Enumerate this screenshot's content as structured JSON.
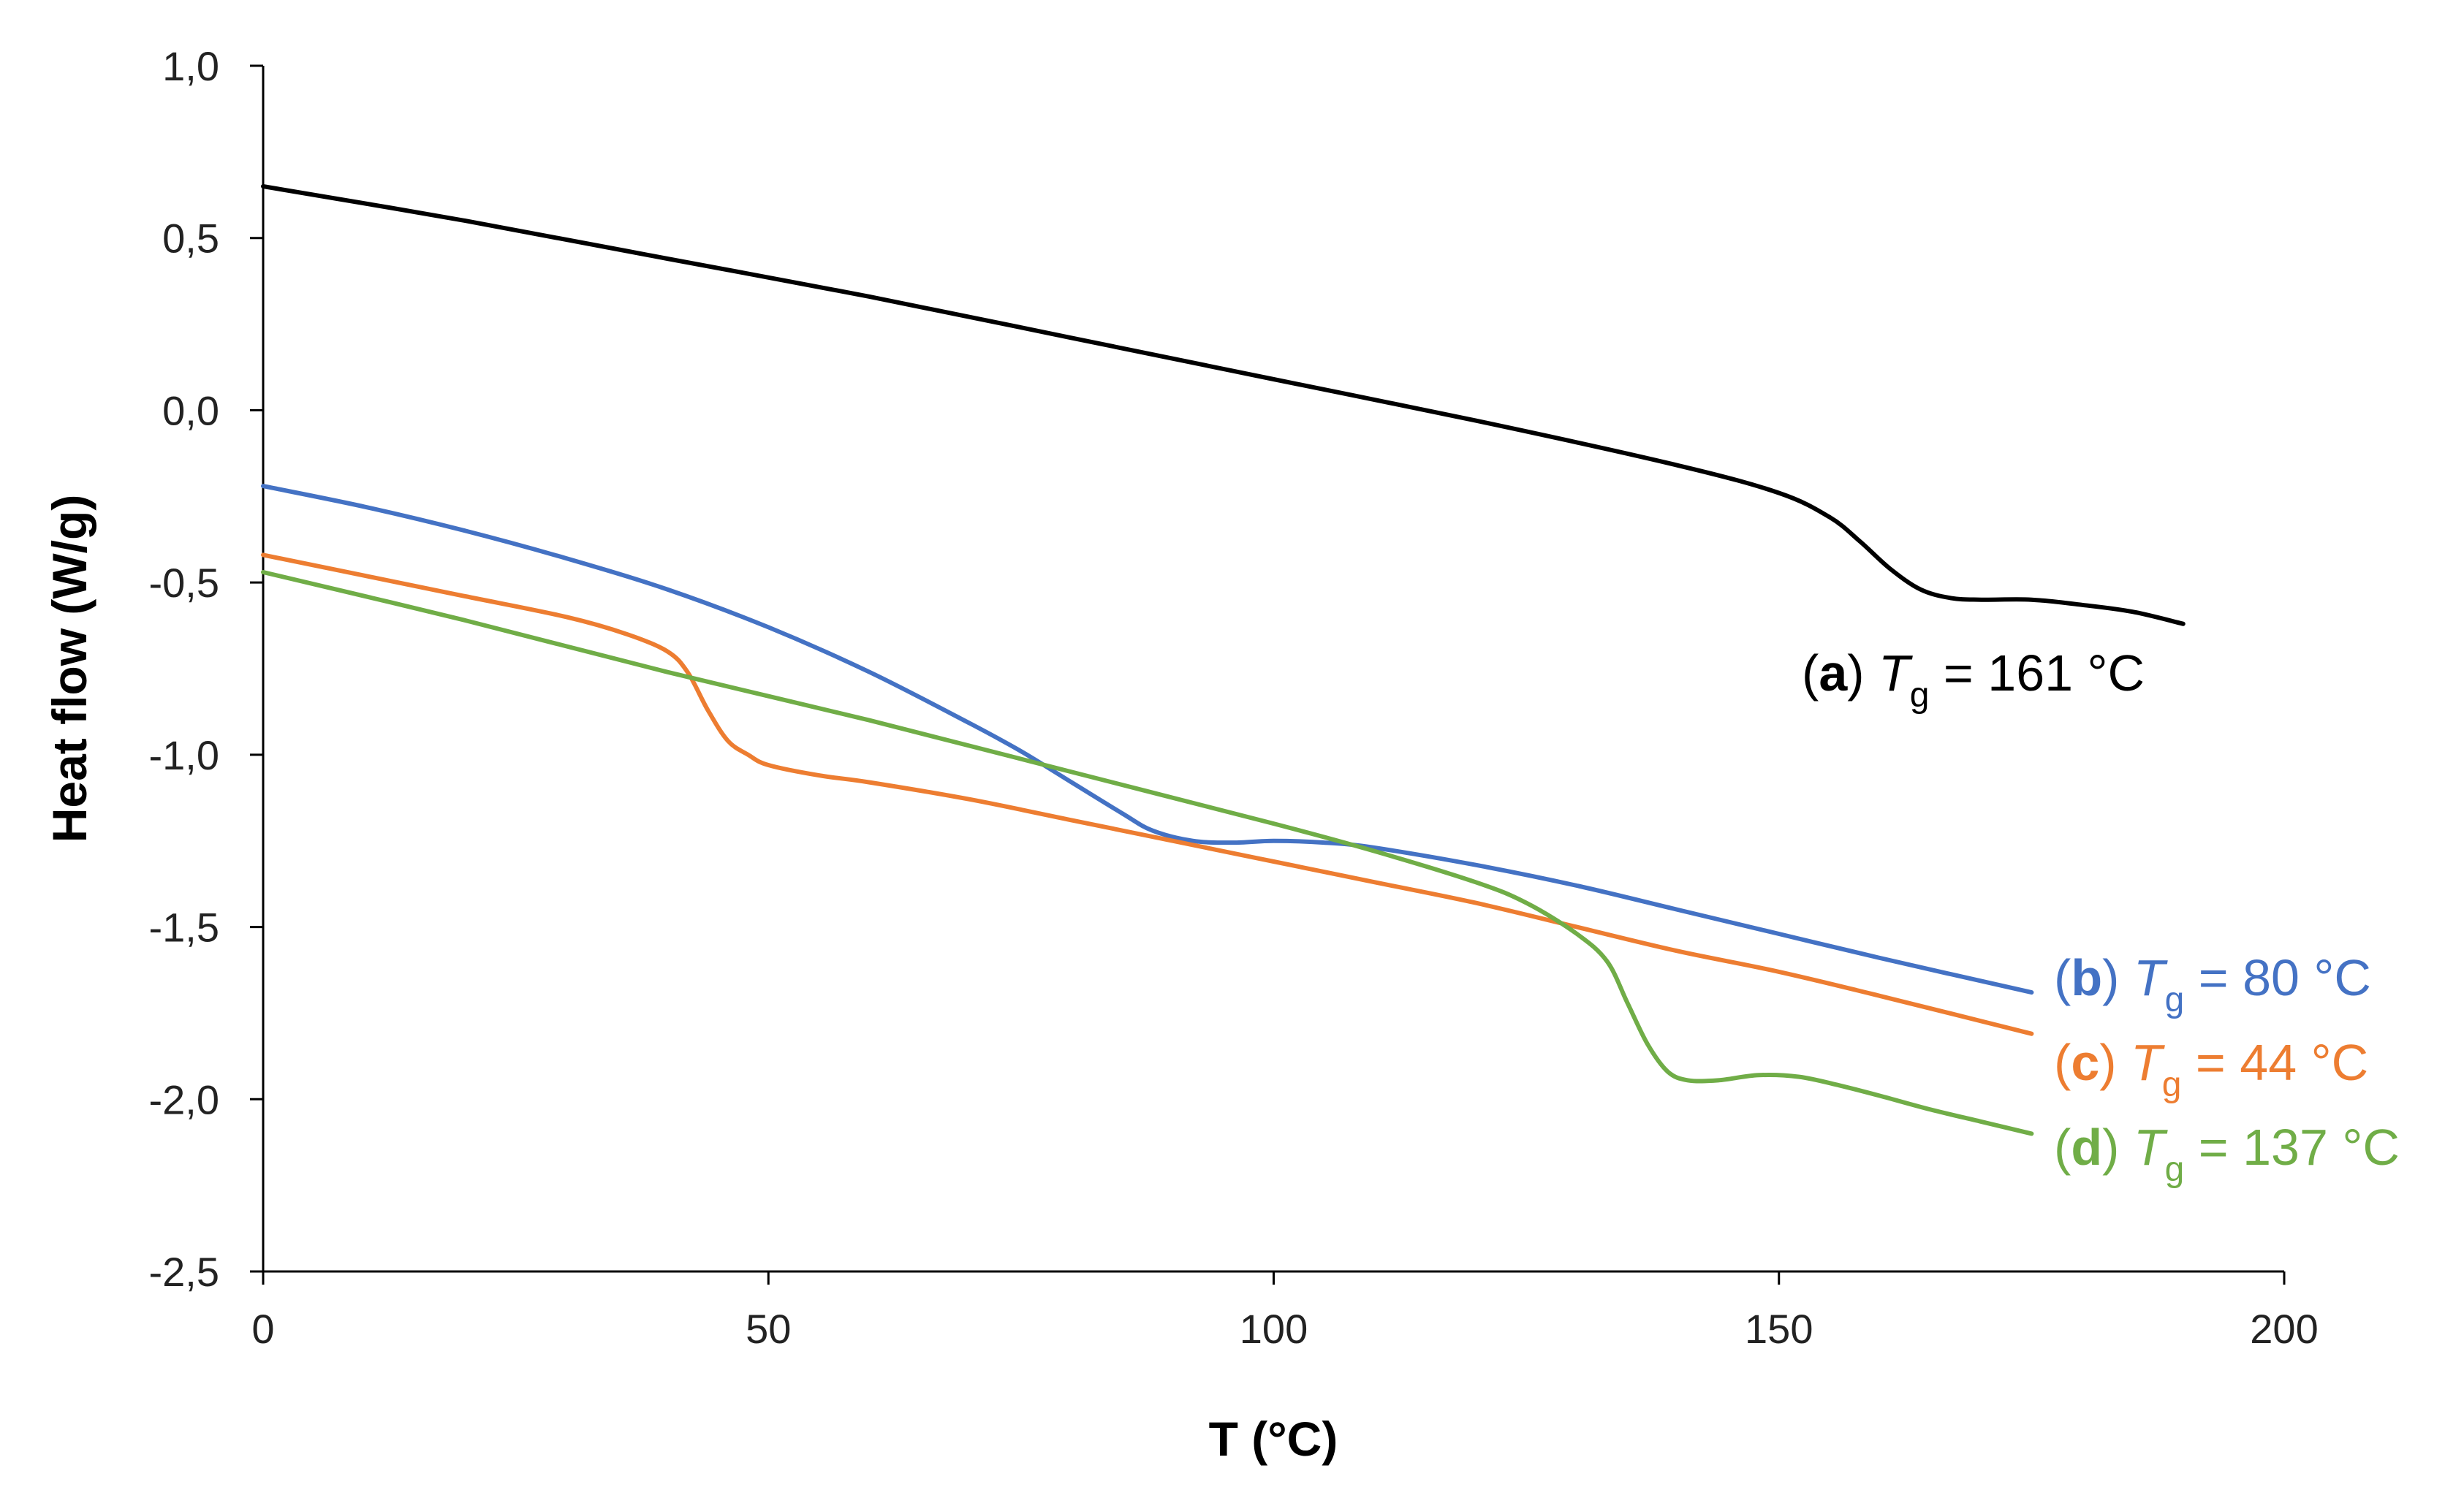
{
  "chart_data": {
    "type": "line",
    "title": "",
    "xlabel": "T (°C)",
    "ylabel": "Heat flow (W/g)",
    "xlim": [
      0,
      200
    ],
    "ylim": [
      -2.5,
      1.0
    ],
    "x_ticks": [
      0,
      50,
      100,
      150,
      200
    ],
    "x_tick_labels": [
      "0",
      "50",
      "100",
      "150",
      "200"
    ],
    "y_ticks": [
      1.0,
      0.5,
      0.0,
      -0.5,
      -1.0,
      -1.5,
      -2.0,
      -2.5
    ],
    "y_tick_labels": [
      "1,0",
      "0,5",
      "0,0",
      "-0,5",
      "-1,0",
      "-1,5",
      "-2,0",
      "-2,5"
    ],
    "grid": false,
    "legend": "inline labels at line ends",
    "series": [
      {
        "name": "(a) Tg = 161 °C",
        "label_id": "a",
        "label_value": "161",
        "color": "#000000",
        "x": [
          0,
          20,
          40,
          60,
          80,
          100,
          120,
          140,
          150,
          155,
          158,
          161,
          164,
          167,
          170,
          175,
          180,
          185,
          190
        ],
        "y": [
          0.65,
          0.55,
          0.44,
          0.33,
          0.21,
          0.09,
          -0.03,
          -0.16,
          -0.24,
          -0.31,
          -0.38,
          -0.46,
          -0.52,
          -0.545,
          -0.55,
          -0.55,
          -0.565,
          -0.585,
          -0.62
        ]
      },
      {
        "name": "(b) Tg = 80 °C",
        "label_id": "b",
        "label_value": "80",
        "color": "#4472C4",
        "x": [
          0,
          10,
          20,
          30,
          40,
          50,
          60,
          70,
          75,
          80,
          85,
          88,
          92,
          96,
          100,
          105,
          110,
          120,
          130,
          140,
          150,
          160,
          175
        ],
        "y": [
          -0.22,
          -0.28,
          -0.35,
          -0.43,
          -0.52,
          -0.63,
          -0.76,
          -0.91,
          -0.99,
          -1.08,
          -1.17,
          -1.22,
          -1.25,
          -1.255,
          -1.25,
          -1.255,
          -1.27,
          -1.32,
          -1.38,
          -1.45,
          -1.52,
          -1.59,
          -1.69
        ]
      },
      {
        "name": "(c) Tg = 44 °C",
        "label_id": "c",
        "label_value": "44",
        "color": "#ED7D31",
        "x": [
          0,
          10,
          20,
          30,
          36,
          40,
          42,
          44,
          46,
          48,
          50,
          55,
          60,
          70,
          80,
          90,
          100,
          110,
          120,
          130,
          140,
          150,
          160,
          175
        ],
        "y": [
          -0.42,
          -0.48,
          -0.54,
          -0.6,
          -0.65,
          -0.7,
          -0.76,
          -0.87,
          -0.96,
          -1.0,
          -1.03,
          -1.06,
          -1.08,
          -1.13,
          -1.19,
          -1.25,
          -1.31,
          -1.37,
          -1.43,
          -1.5,
          -1.57,
          -1.63,
          -1.7,
          -1.81
        ]
      },
      {
        "name": "(d) Tg = 137 °C",
        "label_id": "d",
        "label_value": "137",
        "color": "#70AD47",
        "x": [
          0,
          20,
          40,
          60,
          80,
          100,
          110,
          120,
          125,
          130,
          133,
          135,
          137,
          139,
          141,
          144,
          148,
          152,
          156,
          160,
          165,
          170,
          175
        ],
        "y": [
          -0.47,
          -0.61,
          -0.76,
          -0.9,
          -1.05,
          -1.2,
          -1.28,
          -1.37,
          -1.43,
          -1.52,
          -1.6,
          -1.72,
          -1.84,
          -1.92,
          -1.945,
          -1.945,
          -1.93,
          -1.935,
          -1.96,
          -1.99,
          -2.03,
          -2.065,
          -2.1
        ]
      }
    ]
  }
}
